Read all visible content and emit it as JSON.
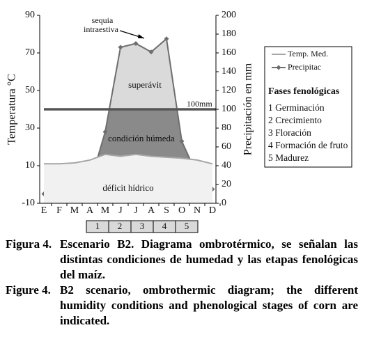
{
  "chart_data": {
    "type": "ombrothermic",
    "categories": [
      "E",
      "F",
      "M",
      "A",
      "M",
      "J",
      "J",
      "A",
      "S",
      "O",
      "N",
      "D"
    ],
    "series": [
      {
        "name": "Temp. Med.",
        "color": "#a6a6a6",
        "axis": "y",
        "values": [
          11,
          11,
          11.5,
          13,
          16,
          15,
          16,
          15,
          14.5,
          14,
          13,
          11
        ]
      },
      {
        "name": "Precipitac",
        "color": "#6e6e6e",
        "axis": "y2",
        "values": [
          10,
          8,
          6,
          20,
          76,
          166,
          170,
          161,
          175,
          66,
          30,
          15
        ]
      }
    ],
    "ylabel": "Temperatura °C",
    "ylim": [
      -10,
      90
    ],
    "yticks": [
      -10,
      10,
      30,
      50,
      70,
      90
    ],
    "y2label": "Precipitación en mm",
    "y2lim": [
      0,
      200
    ],
    "y2ticks": [
      0,
      20,
      40,
      60,
      80,
      100,
      120,
      140,
      160,
      180,
      200
    ],
    "threshold": {
      "value": 100,
      "label": "100mm"
    },
    "annotations": {
      "sequia": [
        "sequia",
        "intraestiva"
      ],
      "surplus": "superávit",
      "humid": "condición húmeda",
      "deficit": "déficit hídrico"
    },
    "phases_title": "Fases fenológicas",
    "phases": [
      "1 Germinación",
      "2 Crecimiento",
      "3 Floración",
      "4 Formación de fruto",
      "5 Madurez"
    ],
    "phase_numbers": [
      1,
      2,
      3,
      4,
      5
    ]
  },
  "captions": [
    {
      "label": "Figura 4.",
      "text": "Escenario B2. Diagrama ombrotérmico, se señalan las distintas condiciones de humedad y las etapas fenológicas del maíz."
    },
    {
      "label": "Figure 4.",
      "text": "B2 scenario, ombrothermic diagram; the different humidity conditions and phenological stages of corn are indicated."
    }
  ]
}
